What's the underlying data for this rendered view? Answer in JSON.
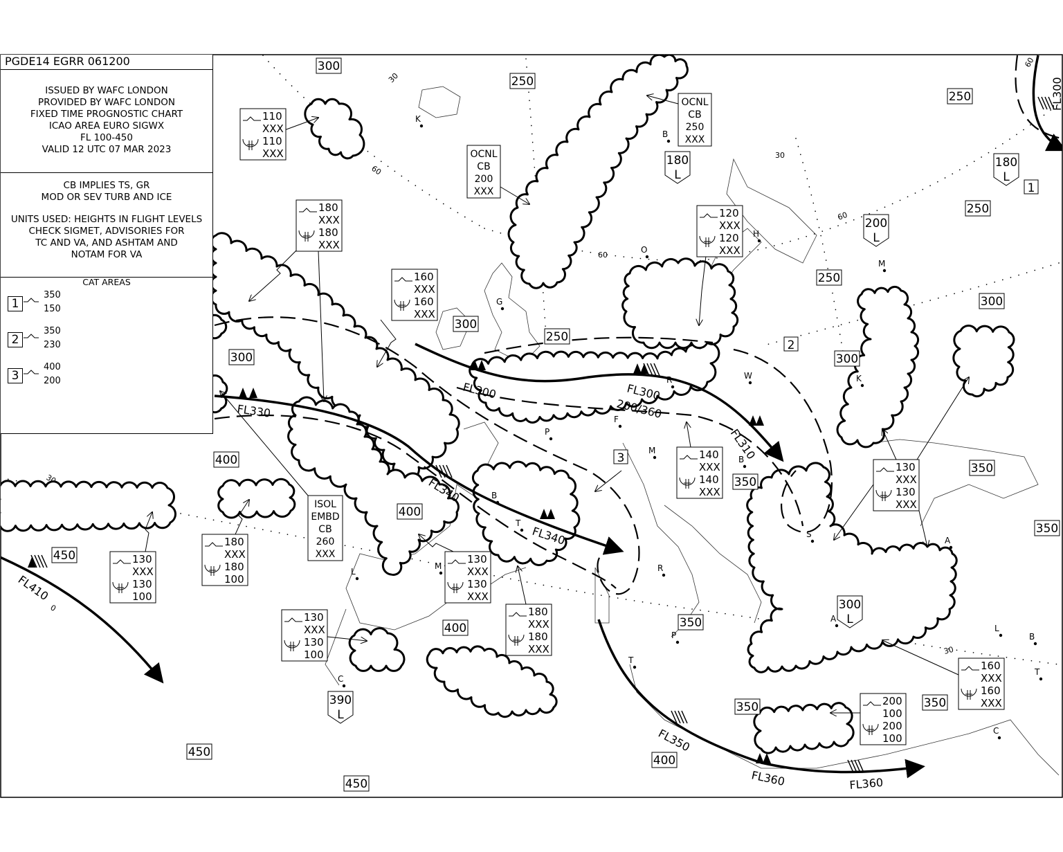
{
  "header": {
    "chart_id": "PGDE14 EGRR 061200"
  },
  "issue_info": [
    "ISSUED BY WAFC LONDON",
    "PROVIDED BY WAFC LONDON",
    "FIXED TIME PROGNOSTIC CHART",
    "ICAO AREA EURO SIGWX",
    "FL 100-450",
    "VALID 12 UTC 07 MAR 2023"
  ],
  "notes": [
    "CB IMPLIES TS, GR",
    "MOD OR SEV TURB AND ICE",
    "",
    "UNITS USED: HEIGHTS IN FLIGHT LEVELS",
    "CHECK SIGMET, ADVISORIES FOR",
    "TC AND VA, AND ASHTAM AND",
    "NOTAM FOR VA"
  ],
  "cat_areas": {
    "title": "CAT AREAS",
    "items": [
      {
        "id": "1",
        "top": "350",
        "base": "150"
      },
      {
        "id": "2",
        "top": "350",
        "base": "230"
      },
      {
        "id": "3",
        "top": "400",
        "base": "200"
      }
    ]
  },
  "tropopause": [
    {
      "value": "300"
    },
    {
      "value": "250"
    },
    {
      "value": "250"
    },
    {
      "value": "180",
      "low": "L"
    },
    {
      "value": "180",
      "low": "L"
    },
    {
      "value": "250"
    },
    {
      "value": "200",
      "low": "L"
    },
    {
      "value": "250"
    },
    {
      "value": "300"
    },
    {
      "value": "300"
    },
    {
      "value": "250"
    },
    {
      "value": "300"
    },
    {
      "value": "300"
    },
    {
      "value": "400"
    },
    {
      "value": "350"
    },
    {
      "value": "350"
    },
    {
      "value": "400"
    },
    {
      "value": "350"
    },
    {
      "value": "450"
    },
    {
      "value": "300",
      "low": "L"
    },
    {
      "value": "350"
    },
    {
      "value": "400"
    },
    {
      "value": "390",
      "low": "L"
    },
    {
      "value": "350"
    },
    {
      "value": "350"
    },
    {
      "value": "450"
    },
    {
      "value": "400"
    },
    {
      "value": "450"
    }
  ],
  "cb_boxes": [
    {
      "turb_top": "110",
      "turb_base": "XXX",
      "ice_top": "110",
      "ice_base": "XXX"
    },
    {
      "turb_top": "180",
      "turb_base": "XXX",
      "ice_top": "180",
      "ice_base": "XXX"
    },
    {
      "turb_top": "160",
      "turb_base": "XXX",
      "ice_top": "160",
      "ice_base": "XXX"
    },
    {
      "turb_top": "120",
      "turb_base": "XXX",
      "ice_top": "120",
      "ice_base": "XXX"
    },
    {
      "turb_top": "140",
      "turb_base": "XXX",
      "ice_top": "140",
      "ice_base": "XXX"
    },
    {
      "turb_top": "130",
      "turb_base": "XXX",
      "ice_top": "130",
      "ice_base": "XXX"
    },
    {
      "turb_top": "130",
      "turb_base": "XXX",
      "ice_top": "130",
      "ice_base": "100"
    },
    {
      "turb_top": "180",
      "turb_base": "XXX",
      "ice_top": "180",
      "ice_base": "100"
    },
    {
      "turb_top": "130",
      "turb_base": "XXX",
      "ice_top": "130",
      "ice_base": "XXX"
    },
    {
      "turb_top": "180",
      "turb_base": "XXX",
      "ice_top": "180",
      "ice_base": "XXX"
    },
    {
      "turb_top": "130",
      "turb_base": "XXX",
      "ice_top": "130",
      "ice_base": "100"
    },
    {
      "turb_top": "160",
      "turb_base": "XXX",
      "ice_top": "160",
      "ice_base": "XXX"
    },
    {
      "turb_top": "200",
      "turb_base": "100",
      "ice_top": "200",
      "ice_base": "100"
    }
  ],
  "cb_text_boxes": [
    {
      "lines": [
        "OCNL",
        "CB",
        "200",
        "XXX"
      ]
    },
    {
      "lines": [
        "OCNL",
        "CB",
        "250",
        "XXX"
      ]
    },
    {
      "lines": [
        "ISOL",
        "EMBD",
        "CB",
        "260",
        "XXX"
      ]
    }
  ],
  "jet_labels": [
    "FL330",
    "FL340",
    "FL340",
    "FL300",
    "FL300",
    "200/360",
    "FL310",
    "FL410",
    "FL350",
    "FL360",
    "FL360",
    "FL300"
  ],
  "cat_markers": [
    "1",
    "2",
    "3"
  ],
  "place_letters": [
    "K",
    "B",
    "O",
    "H",
    "M",
    "G",
    "W",
    "K",
    "P",
    "M",
    "F",
    "B",
    "R",
    "B",
    "T",
    "M",
    "L",
    "S",
    "A",
    "R",
    "P",
    "T",
    "A",
    "C",
    "L",
    "B",
    "T",
    "C"
  ],
  "graticule_labels": [
    "30",
    "60",
    "0",
    "60",
    "30",
    "60",
    "30",
    "0",
    "30",
    "30",
    "60"
  ]
}
